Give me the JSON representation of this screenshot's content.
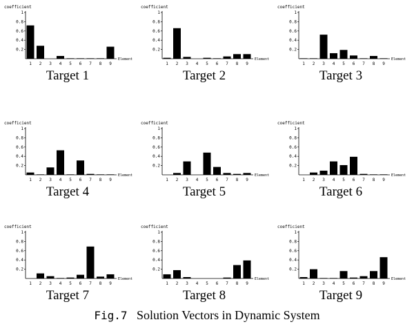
{
  "caption": {
    "label": "Fig.7",
    "text": "Solution Vectors in Dynamic System"
  },
  "chart_data": [
    {
      "type": "bar",
      "title": "Target 1",
      "ylabel": "coefficient",
      "xlabel": "Element",
      "categories": [
        "1",
        "2",
        "3",
        "4",
        "5",
        "6",
        "7",
        "8",
        "9"
      ],
      "values": [
        0.72,
        0.28,
        0.0,
        0.06,
        0.01,
        0.01,
        0.01,
        0.01,
        0.26
      ],
      "ylim": [
        0,
        1
      ],
      "yticks": [
        "0.2",
        "0.4",
        "0.6",
        "0.8",
        "1"
      ]
    },
    {
      "type": "bar",
      "title": "Target 2",
      "ylabel": "coefficient",
      "xlabel": "Element",
      "categories": [
        "1",
        "2",
        "3",
        "4",
        "5",
        "6",
        "7",
        "8",
        "9"
      ],
      "values": [
        0.02,
        0.66,
        0.04,
        0.0,
        0.02,
        0.01,
        0.05,
        0.1,
        0.1
      ],
      "ylim": [
        0,
        1
      ],
      "yticks": [
        "0.2",
        "0.4",
        "0.6",
        "0.8",
        "1"
      ]
    },
    {
      "type": "bar",
      "title": "Target 3",
      "ylabel": "coefficient",
      "xlabel": "Element",
      "categories": [
        "1",
        "2",
        "3",
        "4",
        "5",
        "6",
        "7",
        "8",
        "9"
      ],
      "values": [
        0.01,
        0.01,
        0.52,
        0.12,
        0.19,
        0.07,
        0.01,
        0.06,
        0.01
      ],
      "ylim": [
        0,
        1
      ],
      "yticks": [
        "0.2",
        "0.4",
        "0.6",
        "0.8",
        "1"
      ]
    },
    {
      "type": "bar",
      "title": "Target 4",
      "ylabel": "coefficient",
      "xlabel": "Element",
      "categories": [
        "1",
        "2",
        "3",
        "4",
        "5",
        "6",
        "7",
        "8",
        "9"
      ],
      "values": [
        0.05,
        0.01,
        0.16,
        0.53,
        0.01,
        0.31,
        0.02,
        0.01,
        0.01
      ],
      "ylim": [
        0,
        1
      ],
      "yticks": [
        "0.2",
        "0.4",
        "0.6",
        "0.8",
        "1"
      ]
    },
    {
      "type": "bar",
      "title": "Target 5",
      "ylabel": "coefficient",
      "xlabel": "Element",
      "categories": [
        "1",
        "2",
        "3",
        "4",
        "5",
        "6",
        "7",
        "8",
        "9"
      ],
      "values": [
        0.0,
        0.04,
        0.29,
        0.0,
        0.48,
        0.17,
        0.04,
        0.02,
        0.04
      ],
      "ylim": [
        0,
        1
      ],
      "yticks": [
        "0.2",
        "0.4",
        "0.6",
        "0.8",
        "1"
      ]
    },
    {
      "type": "bar",
      "title": "Target 6",
      "ylabel": "coefficient",
      "xlabel": "Element",
      "categories": [
        "1",
        "2",
        "3",
        "4",
        "5",
        "6",
        "7",
        "8",
        "9"
      ],
      "values": [
        0.0,
        0.05,
        0.09,
        0.29,
        0.21,
        0.39,
        0.02,
        0.01,
        0.01
      ],
      "ylim": [
        0,
        1
      ],
      "yticks": [
        "0.2",
        "0.4",
        "0.6",
        "0.8",
        "1"
      ]
    },
    {
      "type": "bar",
      "title": "Target 7",
      "ylabel": "coefficient",
      "xlabel": "Element",
      "categories": [
        "1",
        "2",
        "3",
        "4",
        "5",
        "6",
        "7",
        "8",
        "9"
      ],
      "values": [
        0.0,
        0.11,
        0.05,
        0.01,
        0.02,
        0.08,
        0.69,
        0.04,
        0.09
      ],
      "ylim": [
        0,
        1
      ],
      "yticks": [
        "0.2",
        "0.4",
        "0.6",
        "0.8",
        "1"
      ]
    },
    {
      "type": "bar",
      "title": "Target 8",
      "ylabel": "coefficient",
      "xlabel": "Element",
      "categories": [
        "1",
        "2",
        "3",
        "4",
        "5",
        "6",
        "7",
        "8",
        "9"
      ],
      "values": [
        0.09,
        0.18,
        0.03,
        0.0,
        0.0,
        0.0,
        0.02,
        0.29,
        0.39
      ],
      "ylim": [
        0,
        1
      ],
      "yticks": [
        "0.2",
        "0.4",
        "0.6",
        "0.8",
        "1"
      ]
    },
    {
      "type": "bar",
      "title": "Target 9",
      "ylabel": "coefficient",
      "xlabel": "Element",
      "categories": [
        "1",
        "2",
        "3",
        "4",
        "5",
        "6",
        "7",
        "8",
        "9"
      ],
      "values": [
        0.03,
        0.2,
        0.01,
        0.01,
        0.16,
        0.02,
        0.05,
        0.16,
        0.46
      ],
      "ylim": [
        0,
        1
      ],
      "yticks": [
        "0.2",
        "0.4",
        "0.6",
        "0.8",
        "1"
      ]
    }
  ]
}
